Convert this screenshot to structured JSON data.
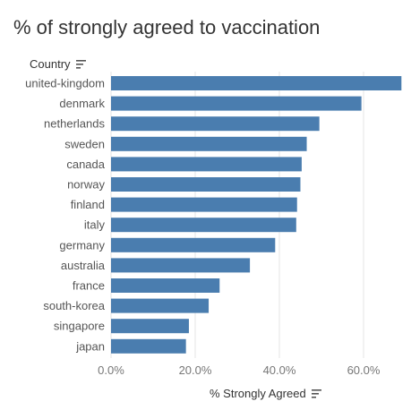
{
  "title": "% of strongly agreed to vaccination",
  "y_header": "Country",
  "x_header": "% Strongly Agreed",
  "icons": {
    "y_sort": "sort-descending-icon",
    "x_sort": "sort-descending-icon"
  },
  "colors": {
    "bar": "#4a7daf",
    "grid": "#e6e6e6"
  },
  "chart_data": {
    "type": "bar",
    "orientation": "horizontal",
    "title": "% of strongly agreed to vaccination",
    "ylabel": "Country",
    "xlabel": "% Strongly Agreed",
    "categories": [
      "united-kingdom",
      "denmark",
      "netherlands",
      "sweden",
      "canada",
      "norway",
      "finland",
      "italy",
      "germany",
      "australia",
      "france",
      "south-korea",
      "singapore",
      "japan"
    ],
    "values": [
      69.0,
      59.5,
      49.5,
      46.5,
      45.3,
      45.0,
      44.2,
      44.0,
      39.0,
      33.0,
      25.8,
      23.2,
      18.5,
      17.8
    ],
    "xlim": [
      0,
      70
    ],
    "xticks": [
      0,
      20,
      40,
      60
    ],
    "xtick_labels": [
      "0.0%",
      "20.0%",
      "40.0%",
      "60.0%"
    ],
    "grid": true
  }
}
